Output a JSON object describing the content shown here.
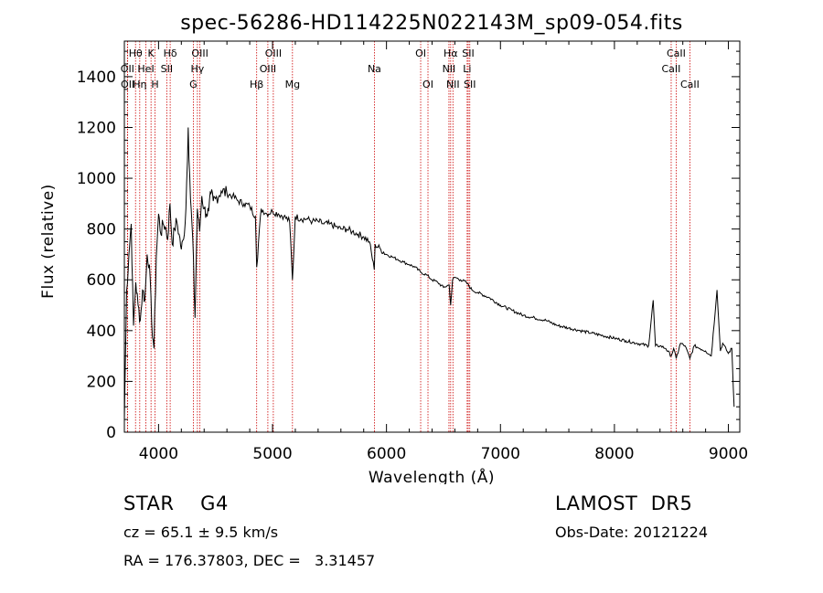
{
  "chart_data": {
    "type": "line",
    "title": "spec-56286-HD114225N022143M_sp09-054.fits",
    "xlabel": "Wavelength (Å)",
    "ylabel": "Flux (relative)",
    "xlim": [
      3700,
      9100
    ],
    "ylim": [
      0,
      1540
    ],
    "x_ticks": [
      4000,
      5000,
      6000,
      7000,
      8000,
      9000
    ],
    "y_ticks": [
      0,
      200,
      400,
      600,
      800,
      1000,
      1200,
      1400
    ],
    "grid": false,
    "series": [
      {
        "x": [
          3700,
          3720,
          3740,
          3760,
          3780,
          3800,
          3820,
          3840,
          3860,
          3880,
          3900,
          3920,
          3940,
          3960,
          3980,
          4000,
          4020,
          4040,
          4060,
          4080,
          4100,
          4120,
          4140,
          4160,
          4180,
          4200,
          4220,
          4240,
          4260,
          4280,
          4300,
          4320,
          4340,
          4360,
          4380,
          4400,
          4420,
          4440,
          4460,
          4480,
          4500,
          4550,
          4600,
          4650,
          4700,
          4750,
          4800,
          4850,
          4861,
          4900,
          4950,
          5000,
          5050,
          5100,
          5150,
          5175,
          5200,
          5250,
          5300,
          5350,
          5400,
          5450,
          5500,
          5550,
          5600,
          5650,
          5700,
          5750,
          5800,
          5850,
          5893,
          5900,
          5950,
          6000,
          6050,
          6100,
          6150,
          6200,
          6250,
          6300,
          6350,
          6400,
          6450,
          6500,
          6550,
          6563,
          6580,
          6600,
          6650,
          6700,
          6750,
          6800,
          6900,
          7000,
          7100,
          7200,
          7300,
          7400,
          7500,
          7600,
          7700,
          7800,
          7900,
          8000,
          8100,
          8200,
          8300,
          8340,
          8360,
          8400,
          8450,
          8498,
          8520,
          8542,
          8580,
          8620,
          8662,
          8700,
          8750,
          8800,
          8850,
          8900,
          8930,
          8950,
          9000,
          9030,
          9050
        ],
        "y": [
          50,
          560,
          700,
          820,
          420,
          590,
          500,
          440,
          560,
          520,
          700,
          660,
          430,
          330,
          690,
          860,
          780,
          820,
          810,
          760,
          900,
          740,
          800,
          830,
          780,
          720,
          760,
          880,
          1200,
          920,
          760,
          450,
          880,
          790,
          930,
          880,
          860,
          870,
          940,
          910,
          920,
          950,
          940,
          930,
          910,
          900,
          890,
          850,
          650,
          880,
          860,
          870,
          860,
          850,
          830,
          600,
          850,
          840,
          840,
          830,
          830,
          820,
          820,
          810,
          800,
          800,
          790,
          780,
          770,
          750,
          640,
          740,
          720,
          700,
          690,
          680,
          670,
          660,
          650,
          630,
          620,
          600,
          590,
          570,
          580,
          500,
          600,
          610,
          600,
          590,
          560,
          550,
          530,
          500,
          480,
          460,
          450,
          440,
          420,
          410,
          400,
          390,
          380,
          370,
          360,
          350,
          340,
          520,
          340,
          340,
          330,
          300,
          330,
          290,
          350,
          340,
          290,
          340,
          330,
          320,
          300,
          560,
          320,
          350,
          310,
          330,
          100
        ]
      }
    ],
    "line_marks": [
      {
        "label": "Hθ",
        "x": 3798,
        "row": 1
      },
      {
        "label": "OII",
        "x": 3727,
        "row": 2
      },
      {
        "label": "OII",
        "x": 3729,
        "row": 3
      },
      {
        "label": "Hη",
        "x": 3835,
        "row": 3
      },
      {
        "label": "HeI",
        "x": 3889,
        "row": 2
      },
      {
        "label": "K",
        "x": 3934,
        "row": 1
      },
      {
        "label": "H",
        "x": 3969,
        "row": 3
      },
      {
        "label": "Hδ",
        "x": 4102,
        "row": 1
      },
      {
        "label": "SII",
        "x": 4072,
        "row": 2
      },
      {
        "label": "OIII",
        "x": 4363,
        "row": 1
      },
      {
        "label": "Hγ",
        "x": 4341,
        "row": 2
      },
      {
        "label": "G",
        "x": 4305,
        "row": 3
      },
      {
        "label": "Hβ",
        "x": 4861,
        "row": 3
      },
      {
        "label": "OIII",
        "x": 4959,
        "row": 2
      },
      {
        "label": "OIII",
        "x": 5007,
        "row": 1
      },
      {
        "label": "Mg",
        "x": 5175,
        "row": 3
      },
      {
        "label": "Na",
        "x": 5894,
        "row": 2
      },
      {
        "label": "OI",
        "x": 6300,
        "row": 1
      },
      {
        "label": "OI",
        "x": 6364,
        "row": 3
      },
      {
        "label": "NII",
        "x": 6548,
        "row": 2
      },
      {
        "label": "Hα",
        "x": 6563,
        "row": 1
      },
      {
        "label": "NII",
        "x": 6583,
        "row": 3
      },
      {
        "label": "Li",
        "x": 6708,
        "row": 2
      },
      {
        "label": "SII",
        "x": 6717,
        "row": 1
      },
      {
        "label": "SII",
        "x": 6731,
        "row": 3
      },
      {
        "label": "CaII",
        "x": 8498,
        "row": 2
      },
      {
        "label": "CaII",
        "x": 8542,
        "row": 1
      },
      {
        "label": "CaII",
        "x": 8662,
        "row": 3
      }
    ]
  },
  "info": {
    "star_class": "STAR    G4",
    "survey": "LAMOST  DR5",
    "cz": "cz = 65.1 ± 9.5 km/s",
    "obs_date": "Obs-Date: 20121224",
    "radec": "RA = 176.37803, DEC =   3.31457"
  },
  "colors": {
    "spectrum": "#000000",
    "line_markers": "#cc0000",
    "axes": "#000000"
  }
}
